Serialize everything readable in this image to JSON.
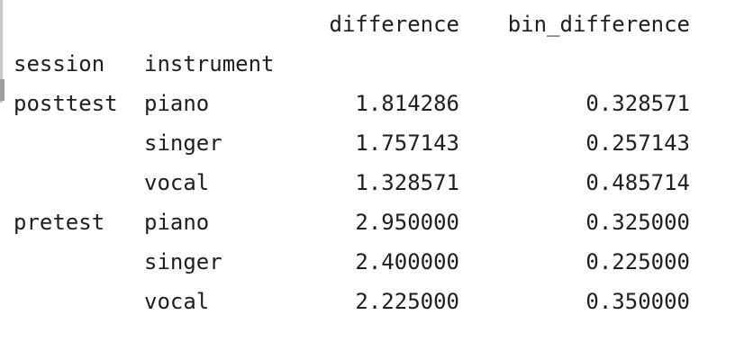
{
  "dataframe": {
    "columns": [
      "difference",
      "bin_difference"
    ],
    "index_names": [
      "session",
      "instrument"
    ],
    "rows": [
      {
        "session": "posttest",
        "instrument": "piano",
        "difference": "1.814286",
        "bin_difference": "0.328571"
      },
      {
        "session": "",
        "instrument": "singer",
        "difference": "1.757143",
        "bin_difference": "0.257143"
      },
      {
        "session": "",
        "instrument": "vocal",
        "difference": "1.328571",
        "bin_difference": "0.485714"
      },
      {
        "session": "pretest",
        "instrument": "piano",
        "difference": "2.950000",
        "bin_difference": "0.325000"
      },
      {
        "session": "",
        "instrument": "singer",
        "difference": "2.400000",
        "bin_difference": "0.225000"
      },
      {
        "session": "",
        "instrument": "vocal",
        "difference": "2.225000",
        "bin_difference": "0.350000"
      }
    ]
  }
}
